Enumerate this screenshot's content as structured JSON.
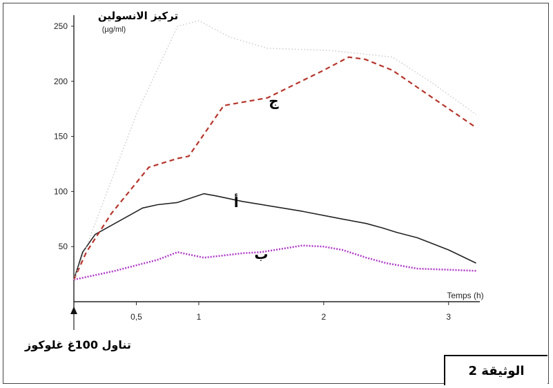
{
  "chart_data": {
    "type": "line",
    "ylabel": "تركيز الانسولين",
    "yunit": "(µg/ml)",
    "xlabel": "Temps (h)",
    "ylim": [
      0,
      260
    ],
    "xlim": [
      0,
      3.25
    ],
    "yticks": [
      50,
      100,
      150,
      200,
      250
    ],
    "xticks": [
      {
        "value": 0.5,
        "label": "0,5"
      },
      {
        "value": 1,
        "label": "1"
      },
      {
        "value": 2,
        "label": "2"
      },
      {
        "value": 3,
        "label": "3"
      }
    ],
    "series": [
      {
        "name": "أ",
        "color": "#222222",
        "style": "solid",
        "x": [
          0,
          0.07,
          0.17,
          0.55,
          0.67,
          0.83,
          1.04,
          1.14,
          1.35,
          1.83,
          2.15,
          2.34,
          2.47,
          2.58,
          2.75,
          3.0,
          3.22
        ],
        "y": [
          20,
          45,
          61,
          85,
          88,
          90,
          98,
          96,
          91,
          82,
          75,
          71,
          67,
          63,
          58,
          47,
          35
        ]
      },
      {
        "name": "ب",
        "color": "#b03cc8",
        "style": "dotted",
        "x": [
          0,
          0.33,
          0.67,
          0.83,
          1.04,
          1.2,
          1.35,
          1.5,
          1.83,
          2.0,
          2.15,
          2.34,
          2.5,
          2.75,
          3.0,
          3.22
        ],
        "y": [
          20,
          28,
          38,
          45,
          40,
          42,
          44,
          45,
          51,
          50,
          47,
          40,
          35,
          30,
          29,
          28
        ]
      },
      {
        "name": "ج",
        "color": "#b5342a",
        "style": "dashed",
        "x": [
          0,
          0.1,
          0.3,
          0.6,
          0.83,
          0.92,
          1.2,
          1.55,
          2.0,
          2.2,
          2.33,
          2.55,
          3.22
        ],
        "y": [
          20,
          45,
          80,
          122,
          130,
          132,
          178,
          185,
          210,
          222,
          220,
          210,
          158
        ]
      },
      {
        "name": "",
        "color": "#c8c8c8",
        "style": "faint-dotted",
        "x": [
          0,
          0.2,
          0.5,
          0.83,
          1.0,
          1.25,
          1.55,
          2.05,
          2.55,
          2.85,
          3.22
        ],
        "y": [
          20,
          80,
          170,
          250,
          255,
          240,
          230,
          228,
          222,
          200,
          170
        ]
      }
    ],
    "curve_labels": [
      {
        "text": "أ",
        "x": 1.3,
        "y": 91
      },
      {
        "text": "ب",
        "x": 1.5,
        "y": 44
      },
      {
        "text": "ج",
        "x": 1.6,
        "y": 183
      }
    ]
  },
  "note": "تناول 100غ غلوكوز",
  "doc_label": "الوثيقة 2"
}
